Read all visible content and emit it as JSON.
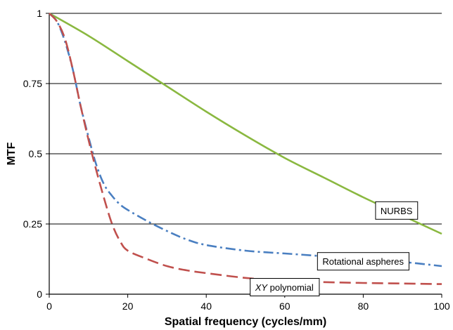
{
  "chart_data": {
    "type": "line",
    "xlabel": "Spatial frequency (cycles/mm)",
    "ylabel": "MTF",
    "xlim": [
      0,
      100
    ],
    "ylim": [
      0,
      1
    ],
    "x_ticks": [
      0,
      20,
      40,
      60,
      80,
      100
    ],
    "y_ticks": [
      0,
      0.25,
      0.5,
      0.75,
      1
    ],
    "x_tick_labels": [
      "0",
      "20",
      "40",
      "60",
      "80",
      "100"
    ],
    "y_tick_labels": [
      "0",
      "0.25",
      "0.5",
      "0.75",
      "1"
    ],
    "grid": "horizontal",
    "series": [
      {
        "name": "NURBS",
        "color": "#8ab840",
        "dash": "solid",
        "x": [
          0,
          10,
          20,
          30,
          40,
          50,
          60,
          70,
          80,
          90,
          100
        ],
        "y": [
          1.0,
          0.92,
          0.83,
          0.74,
          0.65,
          0.565,
          0.485,
          0.415,
          0.345,
          0.28,
          0.215
        ]
      },
      {
        "name": "Rotational aspheres",
        "color": "#4a7fc1",
        "dash": "dash-dot",
        "x": [
          0,
          2,
          4,
          6,
          8,
          10,
          12,
          14,
          16,
          18,
          20,
          25,
          30,
          35,
          40,
          50,
          60,
          70,
          80,
          90,
          100
        ],
        "y": [
          1.0,
          0.97,
          0.9,
          0.8,
          0.67,
          0.56,
          0.46,
          0.39,
          0.35,
          0.32,
          0.3,
          0.26,
          0.225,
          0.195,
          0.175,
          0.155,
          0.145,
          0.135,
          0.125,
          0.115,
          0.1
        ]
      },
      {
        "name": "XY polynomial",
        "color": "#c0504d",
        "dash": "dashed",
        "x": [
          0,
          2,
          4,
          6,
          8,
          10,
          12,
          14,
          16,
          18,
          20,
          25,
          30,
          35,
          40,
          50,
          60,
          70,
          80,
          90,
          100
        ],
        "y": [
          1.0,
          0.97,
          0.91,
          0.8,
          0.67,
          0.55,
          0.44,
          0.34,
          0.25,
          0.19,
          0.155,
          0.125,
          0.1,
          0.085,
          0.075,
          0.058,
          0.048,
          0.043,
          0.04,
          0.038,
          0.036
        ]
      }
    ],
    "annotations": [
      {
        "text": "NURBS",
        "x": 88.5,
        "y": 0.298
      },
      {
        "text": "Rotational aspheres",
        "x": 80,
        "y": 0.117
      },
      {
        "prefix": "XY",
        "text": " polynomial",
        "x": 60,
        "y": 0.025
      }
    ]
  }
}
